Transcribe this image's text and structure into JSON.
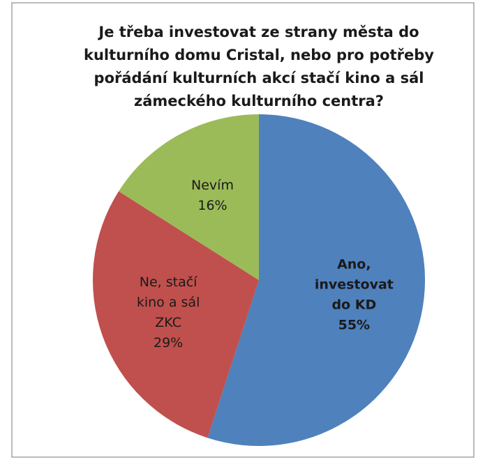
{
  "chart_data": {
    "type": "pie",
    "title": [
      "Je třeba investovat ze strany města do",
      "kulturního domu Cristal, nebo pro potřeby",
      "pořádání kulturních akcí stačí kino a sál",
      "zámeckého kulturního centra?"
    ],
    "categories": [
      [
        "Ano,",
        "investovat",
        "do KD"
      ],
      [
        "Ne, stačí",
        "kino a sál",
        "ZKC"
      ],
      [
        "Nevím"
      ]
    ],
    "values": [
      55,
      29,
      16
    ],
    "value_labels": [
      "55%",
      "29%",
      "16%"
    ],
    "colors": [
      "#4f81bd",
      "#c0504d",
      "#9bbb59"
    ]
  }
}
